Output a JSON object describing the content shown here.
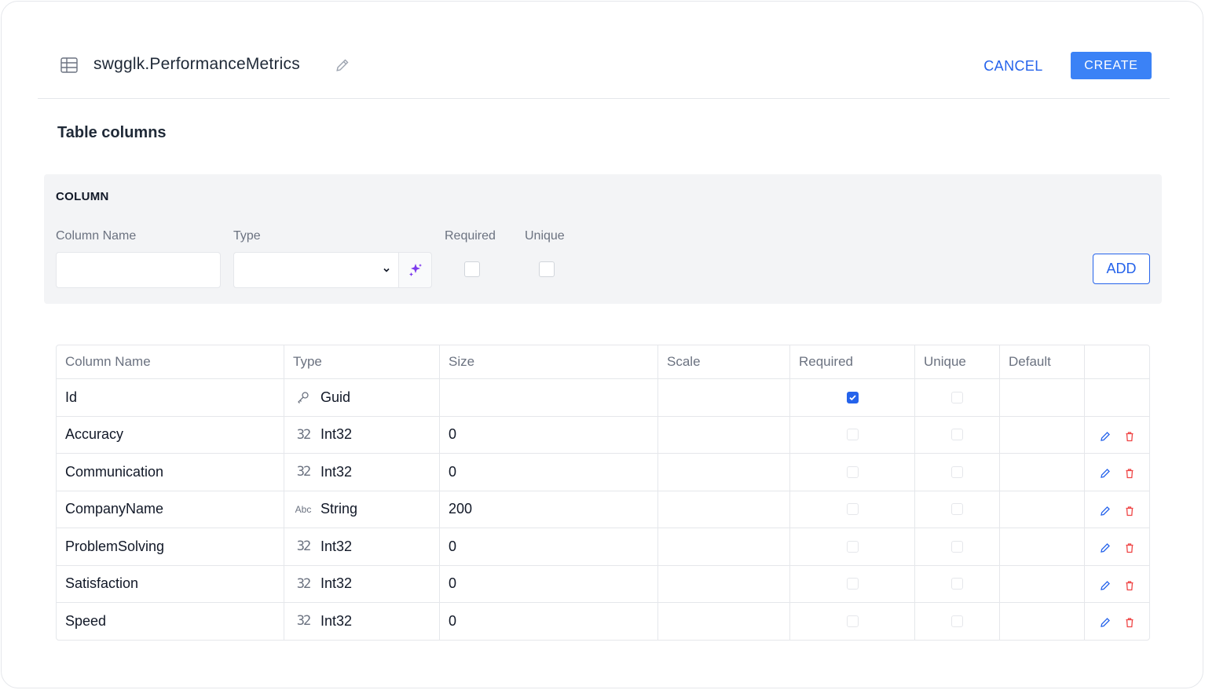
{
  "header": {
    "title": "swgglk.PerformanceMetrics",
    "cancel_label": "CANCEL",
    "create_label": "CREATE",
    "icons": {
      "table": "table-icon",
      "edit": "pencil-icon"
    }
  },
  "section_title": "Table columns",
  "column_form": {
    "heading": "COLUMN",
    "name_label": "Column Name",
    "name_value": "",
    "type_label": "Type",
    "type_value": "",
    "required_label": "Required",
    "unique_label": "Unique",
    "required_checked": false,
    "unique_checked": false,
    "add_label": "ADD",
    "icons": {
      "magic": "sparkles-icon",
      "dropdown": "chevron-down-icon"
    }
  },
  "table": {
    "headers": {
      "name": "Column Name",
      "type": "Type",
      "size": "Size",
      "scale": "Scale",
      "required": "Required",
      "unique": "Unique",
      "default": "Default"
    },
    "rows": [
      {
        "name": "Id",
        "type_icon": "key-icon",
        "type_glyph": "",
        "type": "Guid",
        "size": "",
        "scale": "",
        "required": true,
        "unique": false,
        "default": "",
        "editable": false
      },
      {
        "name": "Accuracy",
        "type_icon": "int32-icon",
        "type_glyph": "32",
        "type": "Int32",
        "size": "0",
        "scale": "",
        "required": false,
        "unique": false,
        "default": "",
        "editable": true
      },
      {
        "name": "Communication",
        "type_icon": "int32-icon",
        "type_glyph": "32",
        "type": "Int32",
        "size": "0",
        "scale": "",
        "required": false,
        "unique": false,
        "default": "",
        "editable": true
      },
      {
        "name": "CompanyName",
        "type_icon": "string-icon",
        "type_glyph": "Abc",
        "type": "String",
        "size": "200",
        "scale": "",
        "required": false,
        "unique": false,
        "default": "",
        "editable": true
      },
      {
        "name": "ProblemSolving",
        "type_icon": "int32-icon",
        "type_glyph": "32",
        "type": "Int32",
        "size": "0",
        "scale": "",
        "required": false,
        "unique": false,
        "default": "",
        "editable": true
      },
      {
        "name": "Satisfaction",
        "type_icon": "int32-icon",
        "type_glyph": "32",
        "type": "Int32",
        "size": "0",
        "scale": "",
        "required": false,
        "unique": false,
        "default": "",
        "editable": true
      },
      {
        "name": "Speed",
        "type_icon": "int32-icon",
        "type_glyph": "32",
        "type": "Int32",
        "size": "0",
        "scale": "",
        "required": false,
        "unique": false,
        "default": "",
        "editable": true
      }
    ]
  },
  "colors": {
    "accent": "#3b82f6",
    "link": "#2563eb",
    "danger": "#ef4444",
    "magic": "#7c3aed"
  }
}
